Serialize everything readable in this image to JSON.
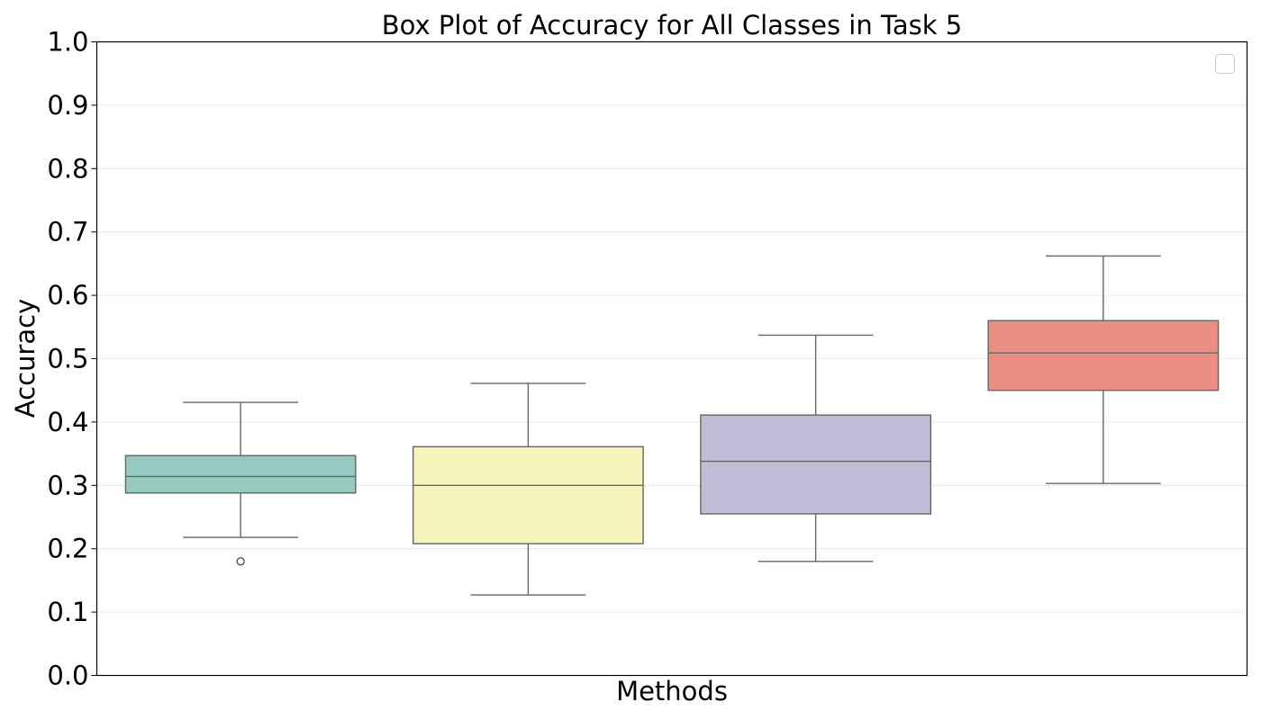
{
  "chart_data": {
    "type": "box",
    "title": "Box Plot of Accuracy for All Classes in Task 5",
    "xlabel": "Methods",
    "ylabel": "Accuracy",
    "ylim": [
      0.0,
      1.0
    ],
    "yticks": [
      "0.0",
      "0.1",
      "0.2",
      "0.3",
      "0.4",
      "0.5",
      "0.6",
      "0.7",
      "0.8",
      "0.9",
      "1.0"
    ],
    "grid": "horizontal-dotted",
    "legend": {
      "placement": "top-right",
      "entries": []
    },
    "boxes": [
      {
        "color": "#96cac0",
        "whisker_low": 0.218,
        "q1": 0.288,
        "median": 0.314,
        "q3": 0.347,
        "whisker_high": 0.431,
        "outliers": [
          0.18
        ]
      },
      {
        "color": "#f6f5bb",
        "whisker_low": 0.127,
        "q1": 0.208,
        "median": 0.3,
        "q3": 0.361,
        "whisker_high": 0.461,
        "outliers": []
      },
      {
        "color": "#c1bdd6",
        "whisker_low": 0.18,
        "q1": 0.255,
        "median": 0.338,
        "q3": 0.411,
        "whisker_high": 0.537,
        "outliers": []
      },
      {
        "color": "#ea8f82",
        "whisker_low": 0.303,
        "q1": 0.45,
        "median": 0.509,
        "q3": 0.56,
        "whisker_high": 0.662,
        "outliers": []
      }
    ]
  }
}
